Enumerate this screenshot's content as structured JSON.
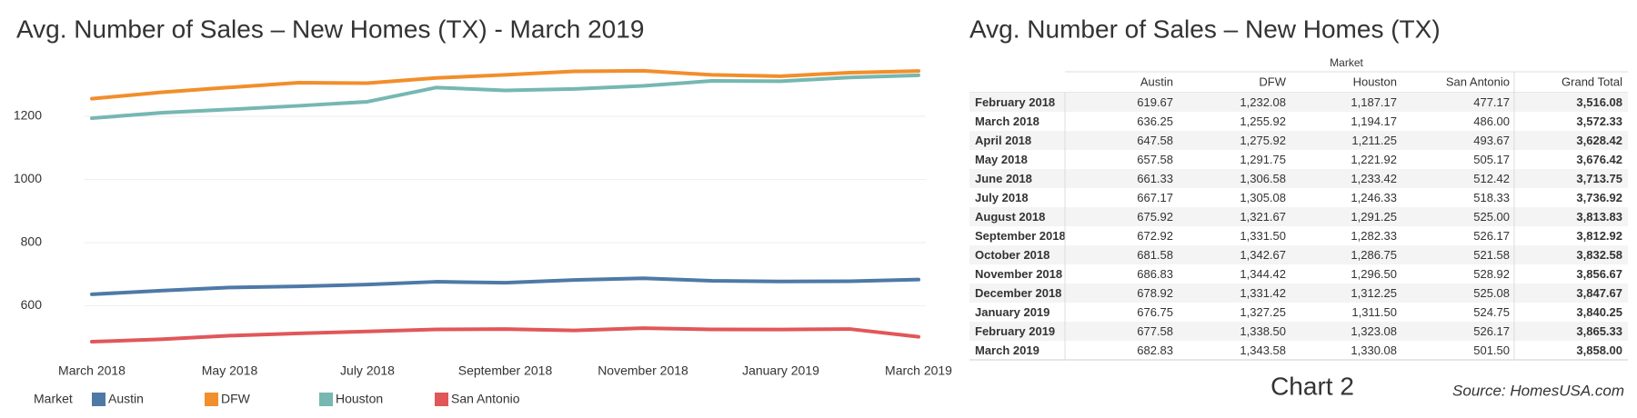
{
  "chart_data": {
    "type": "line",
    "title": "Avg. Number of Sales – New Homes (TX)  - March 2019",
    "categories": [
      "March 2018",
      null,
      "May 2018",
      null,
      "July 2018",
      null,
      "September 2018",
      null,
      "November 2018",
      null,
      "January 2019",
      null,
      "March 2019"
    ],
    "series": [
      {
        "name": "Austin",
        "color": "#4e79a7",
        "values": [
          636.25,
          647.58,
          657.58,
          661.33,
          667.17,
          675.92,
          672.92,
          681.58,
          686.83,
          678.92,
          676.75,
          677.58,
          682.83
        ]
      },
      {
        "name": "DFW",
        "color": "#f28e2b",
        "values": [
          1255.92,
          1275.92,
          1291.75,
          1306.58,
          1305.08,
          1321.67,
          1331.5,
          1342.67,
          1344.42,
          1331.42,
          1327.25,
          1338.5,
          1343.58
        ]
      },
      {
        "name": "Houston",
        "color": "#76b7b2",
        "values": [
          1194.17,
          1211.25,
          1221.92,
          1233.42,
          1246.33,
          1291.25,
          1282.33,
          1286.75,
          1296.5,
          1312.25,
          1311.5,
          1323.08,
          1330.08
        ]
      },
      {
        "name": "San Antonio",
        "color": "#e15759",
        "values": [
          486.0,
          493.67,
          505.17,
          512.42,
          518.33,
          525.0,
          526.17,
          521.58,
          528.92,
          525.08,
          524.75,
          526.17,
          501.5
        ]
      }
    ],
    "ylim": [
      440,
      1370
    ],
    "yticks": [
      600,
      800,
      1000,
      1200
    ],
    "grid": true,
    "legend_title": "Market",
    "legend": "bottom"
  },
  "table": {
    "title": "Avg. Number of Sales – New Homes (TX)",
    "group_header": "Market",
    "columns": [
      "Austin",
      "DFW",
      "Houston",
      "San Antonio",
      "Grand Total"
    ],
    "rows": [
      [
        "February 2018",
        "619.67",
        "1,232.08",
        "1,187.17",
        "477.17",
        "3,516.08"
      ],
      [
        "March 2018",
        "636.25",
        "1,255.92",
        "1,194.17",
        "486.00",
        "3,572.33"
      ],
      [
        "April 2018",
        "647.58",
        "1,275.92",
        "1,211.25",
        "493.67",
        "3,628.42"
      ],
      [
        "May 2018",
        "657.58",
        "1,291.75",
        "1,221.92",
        "505.17",
        "3,676.42"
      ],
      [
        "June 2018",
        "661.33",
        "1,306.58",
        "1,233.42",
        "512.42",
        "3,713.75"
      ],
      [
        "July 2018",
        "667.17",
        "1,305.08",
        "1,246.33",
        "518.33",
        "3,736.92"
      ],
      [
        "August 2018",
        "675.92",
        "1,321.67",
        "1,291.25",
        "525.00",
        "3,813.83"
      ],
      [
        "September 2018",
        "672.92",
        "1,331.50",
        "1,282.33",
        "526.17",
        "3,812.92"
      ],
      [
        "October 2018",
        "681.58",
        "1,342.67",
        "1,286.75",
        "521.58",
        "3,832.58"
      ],
      [
        "November 2018",
        "686.83",
        "1,344.42",
        "1,296.50",
        "528.92",
        "3,856.67"
      ],
      [
        "December 2018",
        "678.92",
        "1,331.42",
        "1,312.25",
        "525.08",
        "3,847.67"
      ],
      [
        "January 2019",
        "676.75",
        "1,327.25",
        "1,311.50",
        "524.75",
        "3,840.25"
      ],
      [
        "February 2019",
        "677.58",
        "1,338.50",
        "1,323.08",
        "526.17",
        "3,865.33"
      ],
      [
        "March 2019",
        "682.83",
        "1,343.58",
        "1,330.08",
        "501.50",
        "3,858.00"
      ]
    ]
  },
  "caption": "Chart 2",
  "source": "Source: HomesUSA.com"
}
